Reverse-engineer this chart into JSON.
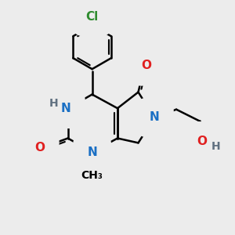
{
  "bg_color": "#ececec",
  "bond_color": "#000000",
  "bond_width": 1.8,
  "atom_colors": {
    "N": "#1a6fc4",
    "O": "#e02020",
    "Cl": "#2e8b2e",
    "H": "#607080",
    "C": "#000000"
  },
  "font_size": 11
}
